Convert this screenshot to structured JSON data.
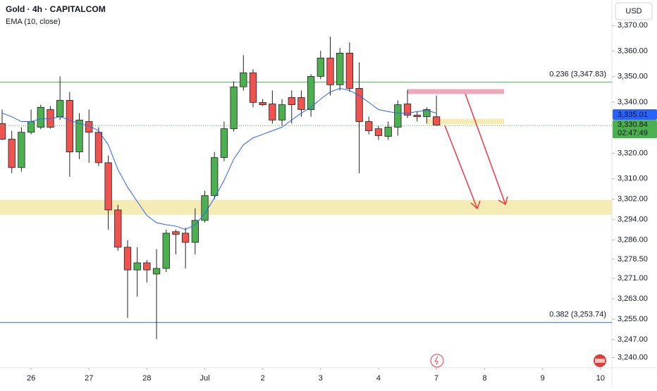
{
  "chart_data": {
    "type": "candlestick",
    "title": "Gold · 4h · CAPITALCOM",
    "subtitle": "EMA (10, close)",
    "currency": "USD",
    "open": [
      3331.6,
      3325.5,
      3314.4,
      3328.2,
      3330.2,
      3337.1,
      3334.3,
      3340.7,
      3320.5,
      3332.4,
      3328.2,
      3316.3,
      3297.8,
      3283.2,
      3274.3,
      3277.1,
      3272.7,
      3274.9,
      3289.3,
      3288.7,
      3285.1,
      3293.7,
      3303.4,
      3318.3,
      3329.6,
      3346.0,
      3351.5,
      3339.9,
      3339.3,
      3333.0,
      3341.8,
      3341.8,
      3337.1,
      3350.1,
      3357.3,
      3346.8,
      3359.2,
      3345.4,
      3332.4,
      3329.6,
      3326.6,
      3330.2,
      3339.3,
      3334.9,
      3334.3,
      3334.3
    ],
    "high": [
      3337.1,
      3328.8,
      3330.2,
      3337.1,
      3339.0,
      3338.5,
      3350.1,
      3344.0,
      3335.7,
      3337.1,
      3330.2,
      3319.1,
      3299.8,
      3285.9,
      3283.2,
      3278.2,
      3282.5,
      3290.1,
      3290.1,
      3290.9,
      3298.4,
      3305.3,
      3320.5,
      3332.4,
      3348.2,
      3358.4,
      3352.9,
      3341.2,
      3344.6,
      3341.2,
      3344.6,
      3344.6,
      3350.9,
      3360.1,
      3365.6,
      3361.2,
      3363.4,
      3355.6,
      3334.3,
      3330.7,
      3332.4,
      3340.7,
      3344.8,
      3336.3,
      3338.0,
      3342.6
    ],
    "low": [
      3325.2,
      3312.2,
      3312.8,
      3327.4,
      3329.4,
      3329.6,
      3333.0,
      3310.8,
      3317.7,
      3316.3,
      3315.0,
      3290.1,
      3281.8,
      3255.5,
      3263.8,
      3269.4,
      3247.2,
      3273.5,
      3280.4,
      3274.9,
      3280.4,
      3292.9,
      3302.0,
      3316.9,
      3328.5,
      3344.6,
      3338.0,
      3338.5,
      3331.6,
      3330.7,
      3331.6,
      3334.3,
      3334.3,
      3349.0,
      3342.6,
      3344.6,
      3344.0,
      3312.2,
      3327.4,
      3325.2,
      3325.2,
      3326.9,
      3333.8,
      3332.4,
      3331.6,
      3330.7
    ],
    "close": [
      3325.5,
      3314.4,
      3328.2,
      3332.4,
      3338.0,
      3330.2,
      3340.7,
      3320.5,
      3333.0,
      3328.2,
      3316.3,
      3297.8,
      3283.2,
      3274.3,
      3277.1,
      3274.3,
      3274.9,
      3288.7,
      3288.2,
      3285.1,
      3293.7,
      3303.4,
      3318.3,
      3329.6,
      3346.0,
      3351.5,
      3339.9,
      3339.0,
      3333.0,
      3339.0,
      3339.0,
      3337.1,
      3350.1,
      3357.3,
      3346.8,
      3359.2,
      3345.4,
      3332.4,
      3328.8,
      3326.9,
      3330.2,
      3339.0,
      3334.9,
      3334.3,
      3337.1,
      3331.0
    ],
    "ema": [
      3335.7,
      3334.3,
      3332.4,
      3332.4,
      3333.5,
      3333.5,
      3334.3,
      3333.0,
      3331.6,
      3330.7,
      3328.8,
      3323.3,
      3313.6,
      3306.7,
      3301.1,
      3295.6,
      3292.8,
      3292.0,
      3291.5,
      3290.1,
      3292.0,
      3296.4,
      3302.5,
      3309.4,
      3317.7,
      3323.3,
      3326.0,
      3327.4,
      3328.8,
      3330.2,
      3333.0,
      3335.7,
      3338.0,
      3341.2,
      3344.0,
      3345.4,
      3344.6,
      3342.6,
      3339.9,
      3337.1,
      3336.3,
      3335.7,
      3335.7,
      3336.3,
      3336.8,
      3335.7
    ],
    "up_color": "#4caf50",
    "down_color": "#ef5350",
    "ema_color": "#2962ff",
    "xlim": [
      -0.22,
      63.18
    ],
    "ylim": [
      3236,
      3380
    ],
    "xticks": [
      {
        "value": 3,
        "label": "26"
      },
      {
        "value": 9,
        "label": "27"
      },
      {
        "value": 15,
        "label": "28"
      },
      {
        "value": 21,
        "label": "Jul"
      },
      {
        "value": 27,
        "label": "2"
      },
      {
        "value": 33,
        "label": "3"
      },
      {
        "value": 39,
        "label": "4"
      },
      {
        "value": 45,
        "label": "7"
      },
      {
        "value": 50,
        "label": "8"
      },
      {
        "value": 56,
        "label": "9"
      },
      {
        "value": 62,
        "label": "10"
      }
    ],
    "yticks": [
      {
        "value": 3370,
        "label": "3,370.00"
      },
      {
        "value": 3360,
        "label": "3,360.00"
      },
      {
        "value": 3350,
        "label": "3,350.00"
      },
      {
        "value": 3340,
        "label": "3,340.00"
      },
      {
        "value": 3320,
        "label": "3,320.00"
      },
      {
        "value": 3310,
        "label": "3,310.00"
      },
      {
        "value": 3302,
        "label": "3,302.00"
      },
      {
        "value": 3294,
        "label": "3,294.00"
      },
      {
        "value": 3286,
        "label": "3,286.00"
      },
      {
        "value": 3278.5,
        "label": "3,278.50"
      },
      {
        "value": 3271,
        "label": "3,271.00"
      },
      {
        "value": 3263,
        "label": "3,263.00"
      },
      {
        "value": 3255,
        "label": "3,255.00"
      },
      {
        "value": 3247,
        "label": "3,247.00"
      },
      {
        "value": 3240,
        "label": "3,240.00"
      }
    ],
    "levels": [
      {
        "value": 3347.83,
        "label": "0.236 (3,347.83)",
        "color": "#4caf50"
      },
      {
        "value": 3253.74,
        "label": "0.382 (3,253.74)",
        "color": "#2962ff"
      }
    ],
    "zones": [
      {
        "low": 3295.9,
        "high": 3301.7,
        "start": -0.22,
        "end": 63.18,
        "color": "#f3e7a8"
      },
      {
        "low": 3331.3,
        "high": 3333.5,
        "start": 44,
        "end": 52,
        "color": "#f3e7a8"
      },
      {
        "low": 3343.2,
        "high": 3345.1,
        "start": 42,
        "end": 52,
        "color": "#e89aae"
      }
    ],
    "ema_tag": {
      "value": 3335.01,
      "label": "3,335.01"
    },
    "price_tag": {
      "value": 3330.84,
      "label": "3,330.84",
      "timer": "02:47:49",
      "color": "#4caf50"
    }
  }
}
